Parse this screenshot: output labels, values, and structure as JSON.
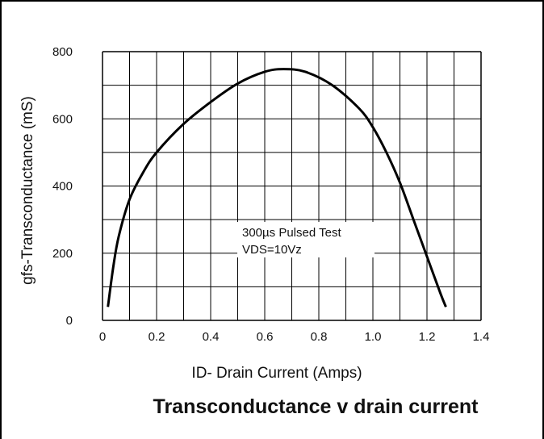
{
  "chart_data": {
    "type": "line",
    "title": "Transconductance v drain current",
    "xlabel": "ID- Drain Current (Amps)",
    "ylabel": "gfs-Transconductance (mS)",
    "xlim": [
      0,
      1.4
    ],
    "ylim": [
      0,
      800
    ],
    "x_ticks": [
      "0",
      "0.2",
      "0.4",
      "0.6",
      "0.8",
      "1.0",
      "1.2",
      "1.4"
    ],
    "y_ticks": [
      "0",
      "200",
      "400",
      "600",
      "800"
    ],
    "grid": true,
    "annotation": {
      "line1": "300µs Pulsed Test",
      "line2": "VDS=10Vz"
    },
    "series": [
      {
        "x": [
          0.02,
          0.04,
          0.06,
          0.1,
          0.15,
          0.2,
          0.3,
          0.4,
          0.5,
          0.6,
          0.67,
          0.75,
          0.85,
          0.95,
          1.0,
          1.05,
          1.1,
          1.15,
          1.2,
          1.25,
          1.27
        ],
        "values": [
          40,
          160,
          250,
          360,
          440,
          500,
          585,
          650,
          705,
          740,
          748,
          740,
          700,
          630,
          575,
          500,
          410,
          300,
          190,
          80,
          40
        ]
      }
    ]
  },
  "colors": {
    "line": "#000000",
    "grid": "#000000"
  }
}
